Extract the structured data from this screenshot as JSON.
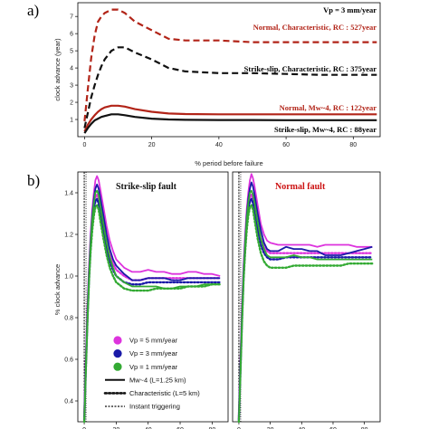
{
  "chart_data": [
    {
      "type": "line",
      "panel_label": "a)",
      "xlabel": "% period before failure",
      "ylabel": "clock advance (year)",
      "xlim": [
        -2,
        88
      ],
      "ylim": [
        0,
        7.8
      ],
      "xticks": [
        0,
        20,
        40,
        60,
        80
      ],
      "yticks": [
        1,
        2,
        3,
        4,
        5,
        6,
        7
      ],
      "x": [
        0,
        1,
        2,
        3,
        4,
        5,
        6,
        8,
        10,
        12,
        15,
        20,
        25,
        30,
        40,
        50,
        60,
        70,
        80,
        87
      ],
      "series": [
        {
          "name": "Normal, Characteristic, RC : 527year",
          "color": "#b22418",
          "dash": "dashed",
          "values": [
            0.9,
            2.8,
            4.6,
            5.9,
            6.7,
            7.0,
            7.2,
            7.4,
            7.4,
            7.2,
            6.7,
            6.2,
            5.7,
            5.6,
            5.6,
            5.5,
            5.5,
            5.5,
            5.5,
            5.5
          ]
        },
        {
          "name": "Strike-slip, Characteristic, RC : 375year",
          "color": "#111111",
          "dash": "dashed",
          "values": [
            0.5,
            1.4,
            2.3,
            3.0,
            3.6,
            4.1,
            4.5,
            5.0,
            5.2,
            5.2,
            4.9,
            4.5,
            4.0,
            3.8,
            3.7,
            3.7,
            3.65,
            3.6,
            3.6,
            3.6
          ]
        },
        {
          "name": "Normal, Mw~4, RC : 122year",
          "color": "#b22418",
          "dash": "solid",
          "values": [
            0.3,
            0.7,
            1.0,
            1.25,
            1.45,
            1.6,
            1.7,
            1.8,
            1.8,
            1.75,
            1.6,
            1.45,
            1.35,
            1.32,
            1.3,
            1.3,
            1.3,
            1.3,
            1.3,
            1.3
          ]
        },
        {
          "name": "Strike-slip, Mw~4, RC : 88year",
          "color": "#111111",
          "dash": "solid",
          "values": [
            0.2,
            0.5,
            0.75,
            0.95,
            1.05,
            1.15,
            1.2,
            1.3,
            1.3,
            1.25,
            1.15,
            1.05,
            1.0,
            0.98,
            0.97,
            0.97,
            0.96,
            0.96,
            0.96,
            0.96
          ]
        }
      ],
      "annotations": {
        "vp": "Vp = 3 mm/year",
        "normal_char": "Normal, Characteristic, RC : 527year",
        "ss_char": "Strike-slip, Characteristic, RC : 375year",
        "normal_mw": "Normal, Mw~4, RC : 122year",
        "ss_mw": "Strike-slip, Mw~4, RC : 88year"
      }
    },
    {
      "type": "line",
      "panel_label": "b)",
      "ylabel": "% clock advance",
      "xlim": [
        -4,
        90
      ],
      "ylim": [
        0.3,
        1.5
      ],
      "xticks": [
        0,
        20,
        40,
        60,
        80
      ],
      "yticks": [
        0.4,
        0.6,
        0.8,
        1.0,
        1.2,
        1.4
      ],
      "vline_x": 0,
      "x": [
        0,
        1,
        2,
        3,
        4,
        5,
        6,
        7,
        8,
        9,
        10,
        12,
        14,
        16,
        18,
        20,
        25,
        30,
        35,
        40,
        45,
        50,
        55,
        60,
        65,
        70,
        75,
        80,
        85
      ],
      "panels": [
        {
          "title": "Strike-slip fault",
          "title_color": "#111111",
          "series": [
            {
              "name": "Vp = 5 mm/year",
              "color": "#dd33dd",
              "style": "solid",
              "values": [
                0.33,
                0.6,
                0.85,
                1.05,
                1.2,
                1.32,
                1.4,
                1.46,
                1.48,
                1.46,
                1.42,
                1.33,
                1.24,
                1.17,
                1.12,
                1.08,
                1.04,
                1.02,
                1.02,
                1.03,
                1.02,
                1.02,
                1.01,
                1.01,
                1.02,
                1.02,
                1.01,
                1.01,
                1.0
              ]
            },
            {
              "name": "Vp = 3 mm/year",
              "color": "#1a1aa8",
              "style": "solid",
              "values": [
                0.32,
                0.58,
                0.82,
                1.02,
                1.17,
                1.29,
                1.37,
                1.42,
                1.44,
                1.42,
                1.38,
                1.29,
                1.2,
                1.13,
                1.08,
                1.05,
                1.01,
                0.98,
                0.98,
                0.99,
                0.99,
                0.99,
                0.98,
                0.98,
                0.99,
                0.99,
                0.99,
                0.99,
                0.99
              ]
            },
            {
              "name": "Vp = 1 mm/year",
              "color": "#33aa33",
              "style": "solid",
              "values": [
                0.31,
                0.56,
                0.8,
                1.0,
                1.15,
                1.27,
                1.35,
                1.4,
                1.41,
                1.39,
                1.34,
                1.25,
                1.16,
                1.09,
                1.04,
                1.0,
                0.97,
                0.95,
                0.95,
                0.95,
                0.95,
                0.94,
                0.94,
                0.95,
                0.95,
                0.95,
                0.96,
                0.96,
                0.96
              ]
            },
            {
              "name": "Vp = 5 mm/year Characteristic",
              "color": "#dd33dd",
              "style": "dotted",
              "values": [
                0.32,
                0.58,
                0.82,
                1.02,
                1.16,
                1.27,
                1.34,
                1.38,
                1.39,
                1.37,
                1.33,
                1.24,
                1.16,
                1.1,
                1.06,
                1.03,
                1.0,
                0.98,
                0.98,
                0.99,
                0.99,
                0.99,
                0.99,
                0.99,
                0.99,
                0.99,
                0.99,
                0.99,
                0.99
              ]
            },
            {
              "name": "Vp = 3 mm/year Characteristic",
              "color": "#1a1aa8",
              "style": "dotted",
              "values": [
                0.31,
                0.56,
                0.8,
                1.0,
                1.14,
                1.25,
                1.32,
                1.36,
                1.37,
                1.35,
                1.3,
                1.21,
                1.13,
                1.07,
                1.03,
                1.0,
                0.97,
                0.96,
                0.96,
                0.97,
                0.97,
                0.97,
                0.97,
                0.97,
                0.97,
                0.97,
                0.97,
                0.97,
                0.97
              ]
            },
            {
              "name": "Vp = 1 mm/year Characteristic",
              "color": "#33aa33",
              "style": "dotted",
              "values": [
                0.3,
                0.54,
                0.78,
                0.98,
                1.12,
                1.22,
                1.29,
                1.33,
                1.34,
                1.32,
                1.27,
                1.18,
                1.1,
                1.04,
                1.0,
                0.97,
                0.94,
                0.93,
                0.93,
                0.93,
                0.94,
                0.94,
                0.94,
                0.94,
                0.95,
                0.95,
                0.95,
                0.96,
                0.96
              ]
            }
          ],
          "legend": [
            {
              "label": "Vp = 5 mm/year",
              "kind": "marker",
              "color": "#dd33dd"
            },
            {
              "label": "Vp = 3 mm/year",
              "kind": "marker",
              "color": "#1a1aa8"
            },
            {
              "label": "Vp = 1 mm/year",
              "kind": "marker",
              "color": "#33aa33"
            },
            {
              "label": "Mw~4 (L=1.25 km)",
              "kind": "solid",
              "color": "#111111"
            },
            {
              "label": "Characteristic (L=5 km)",
              "kind": "dotted",
              "color": "#111111"
            },
            {
              "label": "Instant triggering",
              "kind": "dashdot",
              "color": "#111111"
            }
          ]
        },
        {
          "title": "Normal fault",
          "title_color": "#cc1111",
          "series": [
            {
              "name": "Vp = 5 mm/year",
              "color": "#dd33dd",
              "style": "solid",
              "values": [
                0.33,
                0.6,
                0.85,
                1.05,
                1.2,
                1.32,
                1.4,
                1.46,
                1.49,
                1.47,
                1.43,
                1.34,
                1.25,
                1.2,
                1.17,
                1.16,
                1.15,
                1.15,
                1.15,
                1.15,
                1.15,
                1.14,
                1.15,
                1.15,
                1.15,
                1.15,
                1.14,
                1.14,
                1.14
              ]
            },
            {
              "name": "Vp = 3 mm/year",
              "color": "#1a1aa8",
              "style": "solid",
              "values": [
                0.32,
                0.58,
                0.82,
                1.02,
                1.17,
                1.29,
                1.37,
                1.42,
                1.45,
                1.43,
                1.39,
                1.3,
                1.22,
                1.16,
                1.13,
                1.12,
                1.12,
                1.14,
                1.13,
                1.13,
                1.12,
                1.12,
                1.1,
                1.1,
                1.1,
                1.11,
                1.12,
                1.13,
                1.14
              ]
            },
            {
              "name": "Vp = 1 mm/year",
              "color": "#33aa33",
              "style": "solid",
              "values": [
                0.31,
                0.56,
                0.8,
                1.0,
                1.15,
                1.27,
                1.35,
                1.4,
                1.41,
                1.39,
                1.35,
                1.26,
                1.18,
                1.13,
                1.1,
                1.09,
                1.09,
                1.09,
                1.1,
                1.09,
                1.09,
                1.08,
                1.08,
                1.08,
                1.08,
                1.08,
                1.08,
                1.08,
                1.08
              ]
            },
            {
              "name": "Vp = 5 mm/year Characteristic",
              "color": "#dd33dd",
              "style": "dotted",
              "values": [
                0.32,
                0.58,
                0.82,
                1.02,
                1.16,
                1.27,
                1.34,
                1.38,
                1.39,
                1.37,
                1.33,
                1.25,
                1.18,
                1.14,
                1.12,
                1.11,
                1.11,
                1.11,
                1.11,
                1.11,
                1.11,
                1.11,
                1.11,
                1.11,
                1.11,
                1.11,
                1.11,
                1.11,
                1.11
              ]
            },
            {
              "name": "Vp = 3 mm/year Characteristic",
              "color": "#1a1aa8",
              "style": "dotted",
              "values": [
                0.31,
                0.56,
                0.8,
                1.0,
                1.14,
                1.25,
                1.32,
                1.36,
                1.37,
                1.35,
                1.3,
                1.22,
                1.15,
                1.11,
                1.09,
                1.08,
                1.08,
                1.09,
                1.09,
                1.09,
                1.09,
                1.09,
                1.09,
                1.09,
                1.09,
                1.09,
                1.09,
                1.09,
                1.09
              ]
            },
            {
              "name": "Vp = 1 mm/year Characteristic",
              "color": "#33aa33",
              "style": "dotted",
              "values": [
                0.3,
                0.54,
                0.78,
                0.98,
                1.12,
                1.22,
                1.29,
                1.33,
                1.34,
                1.32,
                1.27,
                1.18,
                1.11,
                1.07,
                1.05,
                1.04,
                1.04,
                1.04,
                1.05,
                1.05,
                1.05,
                1.05,
                1.05,
                1.05,
                1.05,
                1.06,
                1.06,
                1.06,
                1.06
              ]
            }
          ]
        }
      ]
    }
  ]
}
